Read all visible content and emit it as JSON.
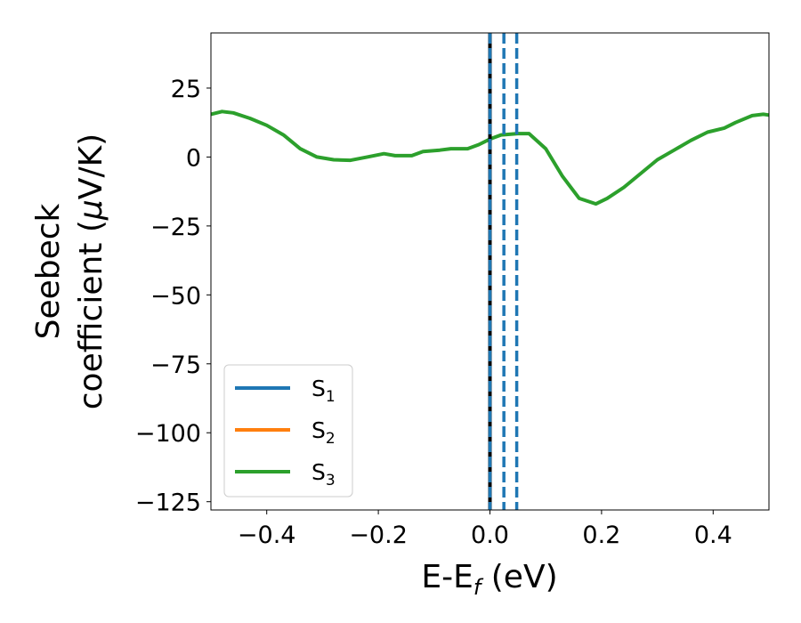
{
  "chart_data": {
    "type": "line",
    "xlabel": "E-E",
    "xlabel_sub": "f",
    "xlabel_unit": " (eV)",
    "ylabel_line1": "Seebeck",
    "ylabel_line2": "coefficient  (",
    "ylabel_mu": "μ",
    "ylabel_unit": "V/K)",
    "xlim": [
      -0.5,
      0.5
    ],
    "ylim": [
      -128,
      45
    ],
    "xticks": [
      -0.4,
      -0.2,
      0.0,
      0.2,
      0.4
    ],
    "xtick_labels": [
      "−0.4",
      "−0.2",
      "0.0",
      "0.2",
      "0.4"
    ],
    "yticks": [
      25,
      0,
      -25,
      -50,
      -75,
      -100,
      -125
    ],
    "ytick_labels": [
      "25",
      "0",
      "−25",
      "−50",
      "−75",
      "−100",
      "−125"
    ],
    "legend_position": "lower-left",
    "series": [
      {
        "name": "S",
        "sub": "1",
        "color": "#1f77b4"
      },
      {
        "name": "S",
        "sub": "2",
        "color": "#ff7f0e"
      },
      {
        "name": "S",
        "sub": "3",
        "color": "#2ca02c",
        "x": [
          -0.5,
          -0.48,
          -0.46,
          -0.43,
          -0.4,
          -0.37,
          -0.34,
          -0.31,
          -0.28,
          -0.25,
          -0.22,
          -0.19,
          -0.17,
          -0.14,
          -0.12,
          -0.09,
          -0.07,
          -0.04,
          -0.02,
          0.0,
          0.02,
          0.05,
          0.07,
          0.1,
          0.13,
          0.16,
          0.19,
          0.21,
          0.24,
          0.27,
          0.3,
          0.33,
          0.36,
          0.39,
          0.42,
          0.44,
          0.47,
          0.49,
          0.5
        ],
        "y": [
          15.5,
          16.5,
          16,
          14,
          11.5,
          8,
          3,
          0,
          -1,
          -1.2,
          0,
          1.2,
          0.5,
          0.5,
          2,
          2.5,
          3,
          3,
          4.5,
          6.5,
          8,
          8.5,
          8.5,
          3,
          -7,
          -15,
          -17,
          -15,
          -11,
          -6,
          -1,
          2.5,
          6,
          9,
          10.5,
          12.5,
          15,
          15.5,
          15.2
        ]
      }
    ],
    "vlines": [
      {
        "x": 0.0,
        "style": "solid",
        "color": "#000000"
      },
      {
        "x": 0.0,
        "style": "dashed",
        "color": "#1f77b4"
      },
      {
        "x": 0.025,
        "style": "dashed",
        "color": "#1f77b4"
      },
      {
        "x": 0.048,
        "style": "dashed",
        "color": "#1f77b4"
      }
    ]
  }
}
